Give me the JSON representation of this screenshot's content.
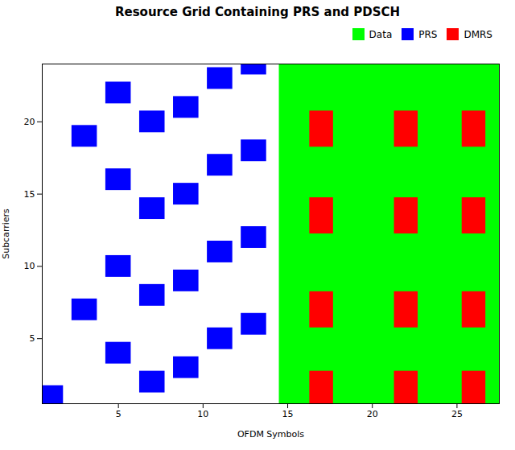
{
  "chart_data": {
    "type": "rect",
    "title": "Resource Grid Containing PRS and PDSCH",
    "xlabel": "OFDM Symbols",
    "ylabel": "Subcarriers",
    "xlim": [
      0.5,
      27.5
    ],
    "ylim": [
      0.5,
      24
    ],
    "xticks": [
      5,
      10,
      15,
      20,
      25
    ],
    "yticks": [
      5,
      10,
      15,
      20
    ],
    "grid": false,
    "legend": "upper right",
    "series": [
      {
        "name": "Data",
        "color": "#00ff00",
        "x_range": [
          14.5,
          27.5
        ]
      },
      {
        "name": "PRS",
        "color": "#0000ff",
        "x": [
          1,
          3,
          3,
          5,
          5,
          5,
          5,
          7,
          7,
          7,
          7,
          9,
          9,
          9,
          9,
          11,
          11,
          11,
          11,
          13,
          13,
          13,
          13
        ],
        "y": [
          1,
          7,
          19,
          4,
          10,
          16,
          22,
          2,
          8,
          14,
          20,
          3,
          9,
          15,
          21,
          5,
          11,
          17,
          23,
          6,
          12,
          18,
          24
        ],
        "width": 1.5,
        "height": 1.5
      },
      {
        "name": "DMRS",
        "color": "#ff0000",
        "x": [
          17,
          17,
          17,
          17,
          22,
          22,
          22,
          22,
          26,
          26,
          26,
          26
        ],
        "y": [
          1.5,
          7,
          13.5,
          19.5,
          1.5,
          7,
          13.5,
          19.5,
          1.5,
          7,
          13.5,
          19.5
        ],
        "width": 1.4,
        "height": 2.5
      }
    ]
  }
}
